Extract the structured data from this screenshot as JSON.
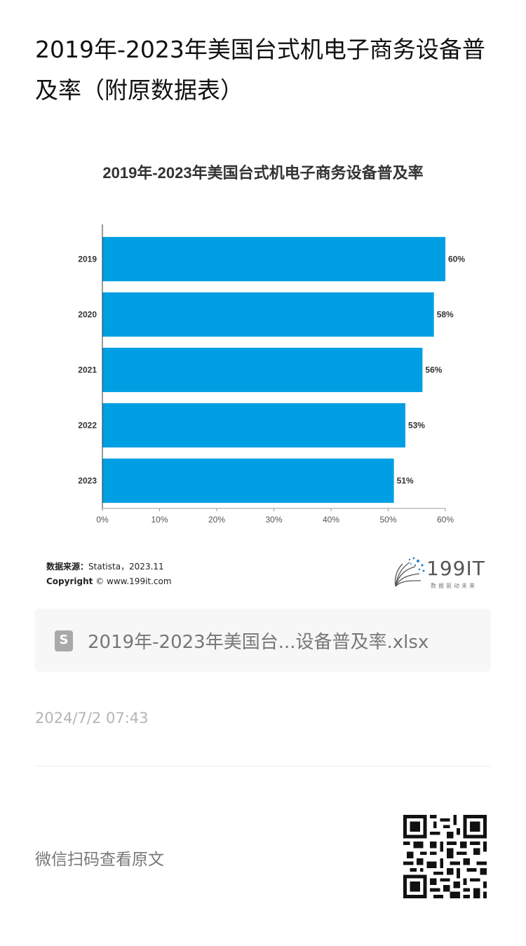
{
  "article": {
    "title": "2019年-2023年美国台式机电子商务设备普及率（附原数据表）"
  },
  "chart_data": {
    "type": "bar",
    "orientation": "horizontal",
    "title": "2019年-2023年美国台式机电子商务设备普及率",
    "categories": [
      "2019",
      "2020",
      "2021",
      "2022",
      "2023"
    ],
    "values": [
      60,
      58,
      56,
      53,
      51
    ],
    "value_labels": [
      "60%",
      "58%",
      "56%",
      "53%",
      "51%"
    ],
    "xlim": [
      0,
      60
    ],
    "x_ticks": [
      "0%",
      "10%",
      "20%",
      "30%",
      "40%",
      "50%",
      "60%"
    ],
    "bar_color": "#009fe3",
    "grid": false,
    "legend": "none"
  },
  "source": {
    "label": "数据来源：",
    "text": "Statista，2023.11",
    "copyright_label": "Copyright",
    "copyright_text": "© www.199it.com"
  },
  "brand": {
    "name": "199IT",
    "tagline": "数据驱动未来"
  },
  "attachment": {
    "icon": "spreadsheet-icon",
    "filename": "2019年-2023年美国台...设备普及率.xlsx"
  },
  "meta": {
    "timestamp": "2024/7/2 07:43"
  },
  "footer": {
    "scan_text": "微信扫码查看原文",
    "qr_icon": "qr-code-icon"
  }
}
